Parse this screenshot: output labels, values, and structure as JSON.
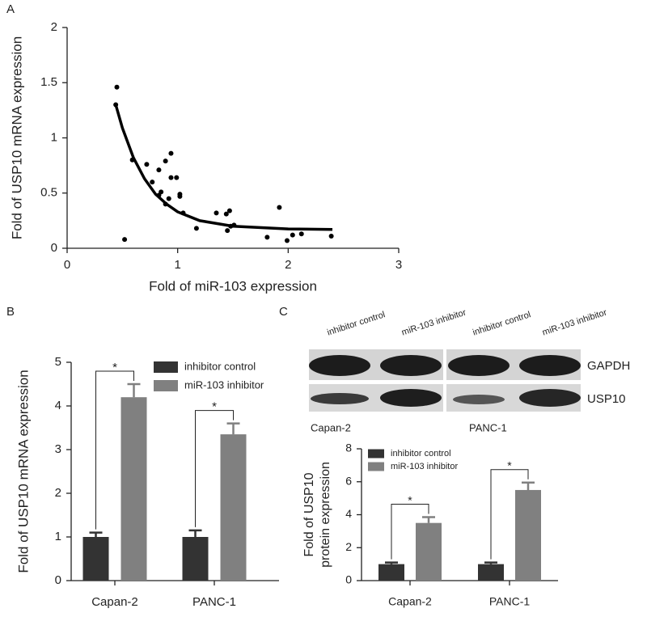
{
  "chart_data": [
    {
      "type": "scatter",
      "panel": "A",
      "xlabel": "Fold of miR-103 expression",
      "ylabel": "Fold of USP10 mRNA expression",
      "x": [
        0.45,
        0.44,
        0.59,
        0.52,
        0.72,
        0.77,
        0.83,
        0.89,
        0.94,
        0.94,
        0.99,
        0.83,
        0.85,
        0.89,
        0.92,
        1.02,
        1.02,
        1.05,
        1.17,
        1.35,
        1.44,
        1.47,
        1.45,
        1.48,
        1.51,
        1.81,
        1.92,
        1.99,
        2.04,
        2.12,
        2.39
      ],
      "y": [
        1.46,
        1.3,
        0.8,
        0.08,
        0.76,
        0.6,
        0.71,
        0.79,
        0.86,
        0.64,
        0.64,
        0.48,
        0.51,
        0.4,
        0.45,
        0.49,
        0.47,
        0.32,
        0.18,
        0.32,
        0.31,
        0.34,
        0.16,
        0.2,
        0.21,
        0.1,
        0.37,
        0.07,
        0.12,
        0.13,
        0.11
      ],
      "color": "#000000",
      "fit": {
        "x": [
          0.44,
          0.5,
          0.6,
          0.7,
          0.8,
          0.9,
          1.0,
          1.2,
          1.5,
          2.0,
          2.4
        ],
        "y": [
          1.3,
          1.09,
          0.82,
          0.63,
          0.49,
          0.4,
          0.33,
          0.25,
          0.2,
          0.175,
          0.17
        ]
      },
      "xlim": [
        0,
        3
      ],
      "xticks": [
        0,
        1,
        2,
        3
      ],
      "ylim": [
        0,
        2
      ],
      "yticks": [
        0,
        0.5,
        1,
        1.5,
        2
      ]
    },
    {
      "type": "bar",
      "panel": "B",
      "ylabel": "Fold of USP10 mRNA expression",
      "categories": [
        "Capan-2",
        "PANC-1"
      ],
      "series": [
        {
          "name": "inhibitor control",
          "color": "#333333",
          "values": [
            1,
            1
          ],
          "errors": [
            0.1,
            0.15
          ]
        },
        {
          "name": "miR-103 inhibitor",
          "color": "#808080",
          "values": [
            4.2,
            3.35
          ],
          "errors": [
            0.3,
            0.25
          ]
        }
      ],
      "annotations": [
        "*",
        "*"
      ],
      "legend": "upper right",
      "ylim": [
        0,
        5
      ],
      "yticks": [
        0,
        1,
        2,
        3,
        4,
        5
      ]
    },
    {
      "type": "bar",
      "panel": "C",
      "ylabel": [
        "Fold of USP10",
        "protein expression"
      ],
      "categories": [
        "Capan-2",
        "PANC-1"
      ],
      "series": [
        {
          "name": "inhibitor control",
          "color": "#333333",
          "values": [
            1,
            1
          ],
          "errors": [
            0.1,
            0.1
          ]
        },
        {
          "name": "miR-103 inhibitor",
          "color": "#808080",
          "values": [
            3.5,
            5.5
          ],
          "errors": [
            0.35,
            0.45
          ]
        }
      ],
      "annotations": [
        "*",
        "*"
      ],
      "legend": "upper left",
      "ylim": [
        0,
        8
      ],
      "yticks": [
        0,
        2,
        4,
        6,
        8
      ]
    }
  ],
  "blot": {
    "lanes": [
      "inhibitor control",
      "miR-103 inhibitor",
      "inhibitor control",
      "miR-103 inhibitor"
    ],
    "rows": [
      "GAPDH",
      "USP10"
    ],
    "cell_lines": [
      "Capan-2",
      "PANC-1"
    ]
  }
}
